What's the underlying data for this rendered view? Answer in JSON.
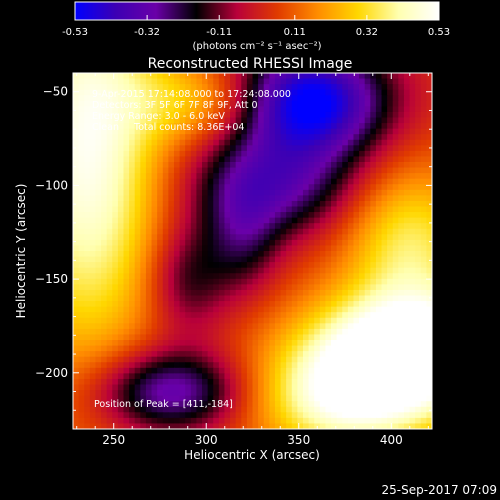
{
  "chart_data": {
    "type": "heatmap",
    "title": "Reconstructed RHESSI Image",
    "xlabel": "Heliocentric X (arcsec)",
    "ylabel": "Heliocentric Y (arcsec)",
    "xlim": [
      228,
      422
    ],
    "ylim": [
      -230,
      -40
    ],
    "x_ticks": [
      250,
      300,
      350,
      400
    ],
    "y_ticks": [
      -50,
      -100,
      -150,
      -200
    ],
    "colorbar": {
      "min": -0.53,
      "max": 0.53,
      "ticks": [
        -0.53,
        -0.32,
        -0.11,
        0.11,
        0.32,
        0.53
      ],
      "tick_labels": [
        "-0.53",
        "-0.32",
        "-0.11",
        "0.11",
        "0.32",
        "0.53"
      ],
      "unit_label": "(photons cm⁻² s⁻¹ asec⁻²)",
      "colors": [
        "#0000ff",
        "#3c00b4",
        "#6a00a8",
        "#000000",
        "#b8003a",
        "#e03a00",
        "#ff8c00",
        "#ffd700",
        "#ffffb0",
        "#ffffff"
      ]
    },
    "annotations": [
      "9-Apr-2015 17:14:08.000 to 17:24:08.000",
      "Detectors: 3F 5F 6F 7F 8F 9F, Att 0",
      "Energy Range: 3.0 - 6.0 keV",
      "Clean     Total counts: 8.36E+04"
    ],
    "peak_label": "Position of Peak = [411,-184]",
    "peak": [
      411,
      -184
    ],
    "grid": false
  },
  "footer": {
    "timestamp": "25-Sep-2017 07:09"
  }
}
